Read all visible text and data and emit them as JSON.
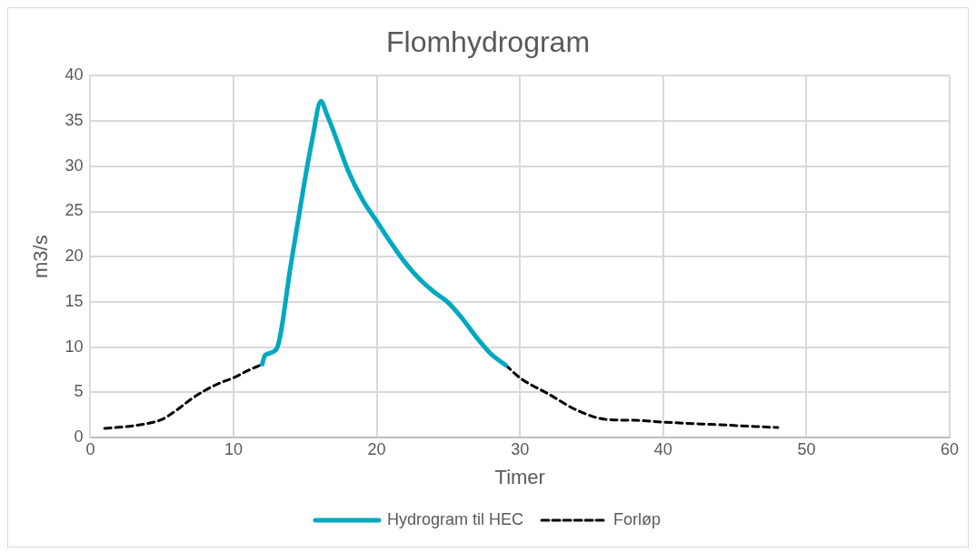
{
  "chart_data": {
    "type": "line",
    "title": "Flomhydrogram",
    "xlabel": "Timer",
    "ylabel": "m3/s",
    "xlim": [
      0,
      60
    ],
    "xticks": [
      0,
      10,
      20,
      30,
      40,
      50,
      60
    ],
    "ylim": [
      0,
      40
    ],
    "yticks": [
      0,
      5,
      10,
      15,
      20,
      25,
      30,
      35,
      40
    ],
    "grid": true,
    "legend": "bottom",
    "marker": "none",
    "series": [
      {
        "name": "Forløp",
        "color": "#000000",
        "line_style": "dashed",
        "x": [
          1,
          3,
          5,
          6,
          7,
          8,
          9,
          10,
          11,
          12,
          20,
          29,
          30,
          32,
          34,
          36,
          38,
          40,
          44,
          48
        ],
        "values": [
          1.0,
          1.3,
          2.0,
          3.0,
          4.2,
          5.2,
          6.0,
          6.6,
          7.4,
          8.1,
          null,
          8.0,
          6.6,
          4.8,
          3.0,
          2.0,
          1.9,
          1.7,
          1.4,
          1.1
        ]
      },
      {
        "name": "Hydrogram til HEC",
        "color": "#00a9be",
        "line_style": "solid",
        "x": [
          12,
          12.2,
          13,
          14,
          15,
          15.5,
          16.1,
          16.5,
          17,
          18,
          19,
          20,
          21,
          22,
          23,
          24,
          25,
          26,
          27,
          28,
          29
        ],
        "values": [
          8.1,
          9.1,
          9.8,
          19.1,
          28.7,
          33,
          37.2,
          35.8,
          33.8,
          29.5,
          26.3,
          23.9,
          21.5,
          19.3,
          17.5,
          16.1,
          14.9,
          13.1,
          11.0,
          9.2,
          8.0
        ]
      }
    ]
  }
}
